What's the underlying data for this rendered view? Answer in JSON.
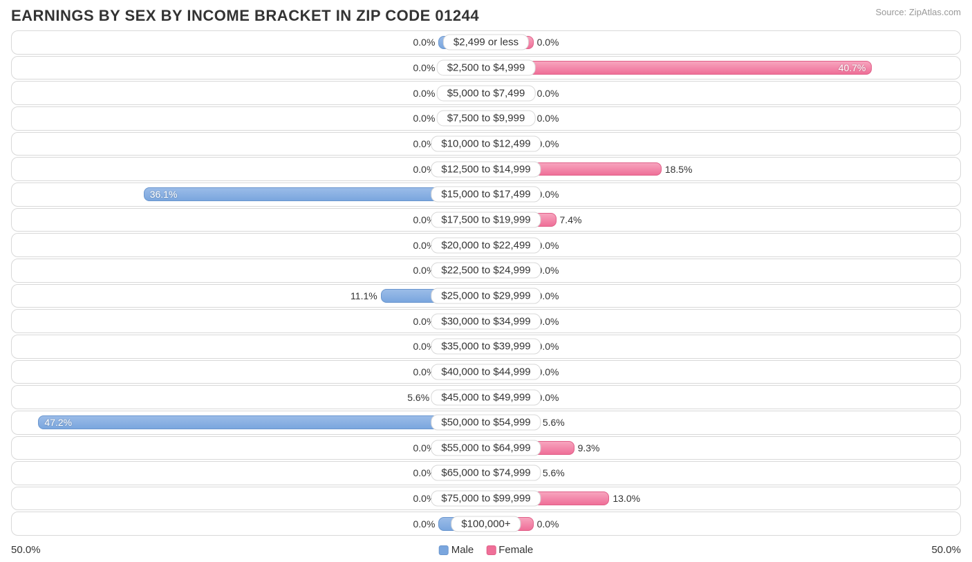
{
  "title": "EARNINGS BY SEX BY INCOME BRACKET IN ZIP CODE 01244",
  "source": "Source: ZipAtlas.com",
  "axis_max": 50.0,
  "axis_label_left": "50.0%",
  "axis_label_right": "50.0%",
  "legend": {
    "male": "Male",
    "female": "Female"
  },
  "colors": {
    "male_fill": "#7aa6de",
    "female_fill": "#ef6f98",
    "border": "#d8d8d8",
    "text": "#333333",
    "bg": "#ffffff"
  },
  "min_bar_pct": 10,
  "in_label_threshold": 30,
  "rows": [
    {
      "label": "$2,499 or less",
      "male": 0.0,
      "female": 0.0
    },
    {
      "label": "$2,500 to $4,999",
      "male": 0.0,
      "female": 40.7
    },
    {
      "label": "$5,000 to $7,499",
      "male": 0.0,
      "female": 0.0
    },
    {
      "label": "$7,500 to $9,999",
      "male": 0.0,
      "female": 0.0
    },
    {
      "label": "$10,000 to $12,499",
      "male": 0.0,
      "female": 0.0
    },
    {
      "label": "$12,500 to $14,999",
      "male": 0.0,
      "female": 18.5
    },
    {
      "label": "$15,000 to $17,499",
      "male": 36.1,
      "female": 0.0
    },
    {
      "label": "$17,500 to $19,999",
      "male": 0.0,
      "female": 7.4
    },
    {
      "label": "$20,000 to $22,499",
      "male": 0.0,
      "female": 0.0
    },
    {
      "label": "$22,500 to $24,999",
      "male": 0.0,
      "female": 0.0
    },
    {
      "label": "$25,000 to $29,999",
      "male": 11.1,
      "female": 0.0
    },
    {
      "label": "$30,000 to $34,999",
      "male": 0.0,
      "female": 0.0
    },
    {
      "label": "$35,000 to $39,999",
      "male": 0.0,
      "female": 0.0
    },
    {
      "label": "$40,000 to $44,999",
      "male": 0.0,
      "female": 0.0
    },
    {
      "label": "$45,000 to $49,999",
      "male": 5.6,
      "female": 0.0
    },
    {
      "label": "$50,000 to $54,999",
      "male": 47.2,
      "female": 5.6
    },
    {
      "label": "$55,000 to $64,999",
      "male": 0.0,
      "female": 9.3
    },
    {
      "label": "$65,000 to $74,999",
      "male": 0.0,
      "female": 5.6
    },
    {
      "label": "$75,000 to $99,999",
      "male": 0.0,
      "female": 13.0
    },
    {
      "label": "$100,000+",
      "male": 0.0,
      "female": 0.0
    }
  ]
}
